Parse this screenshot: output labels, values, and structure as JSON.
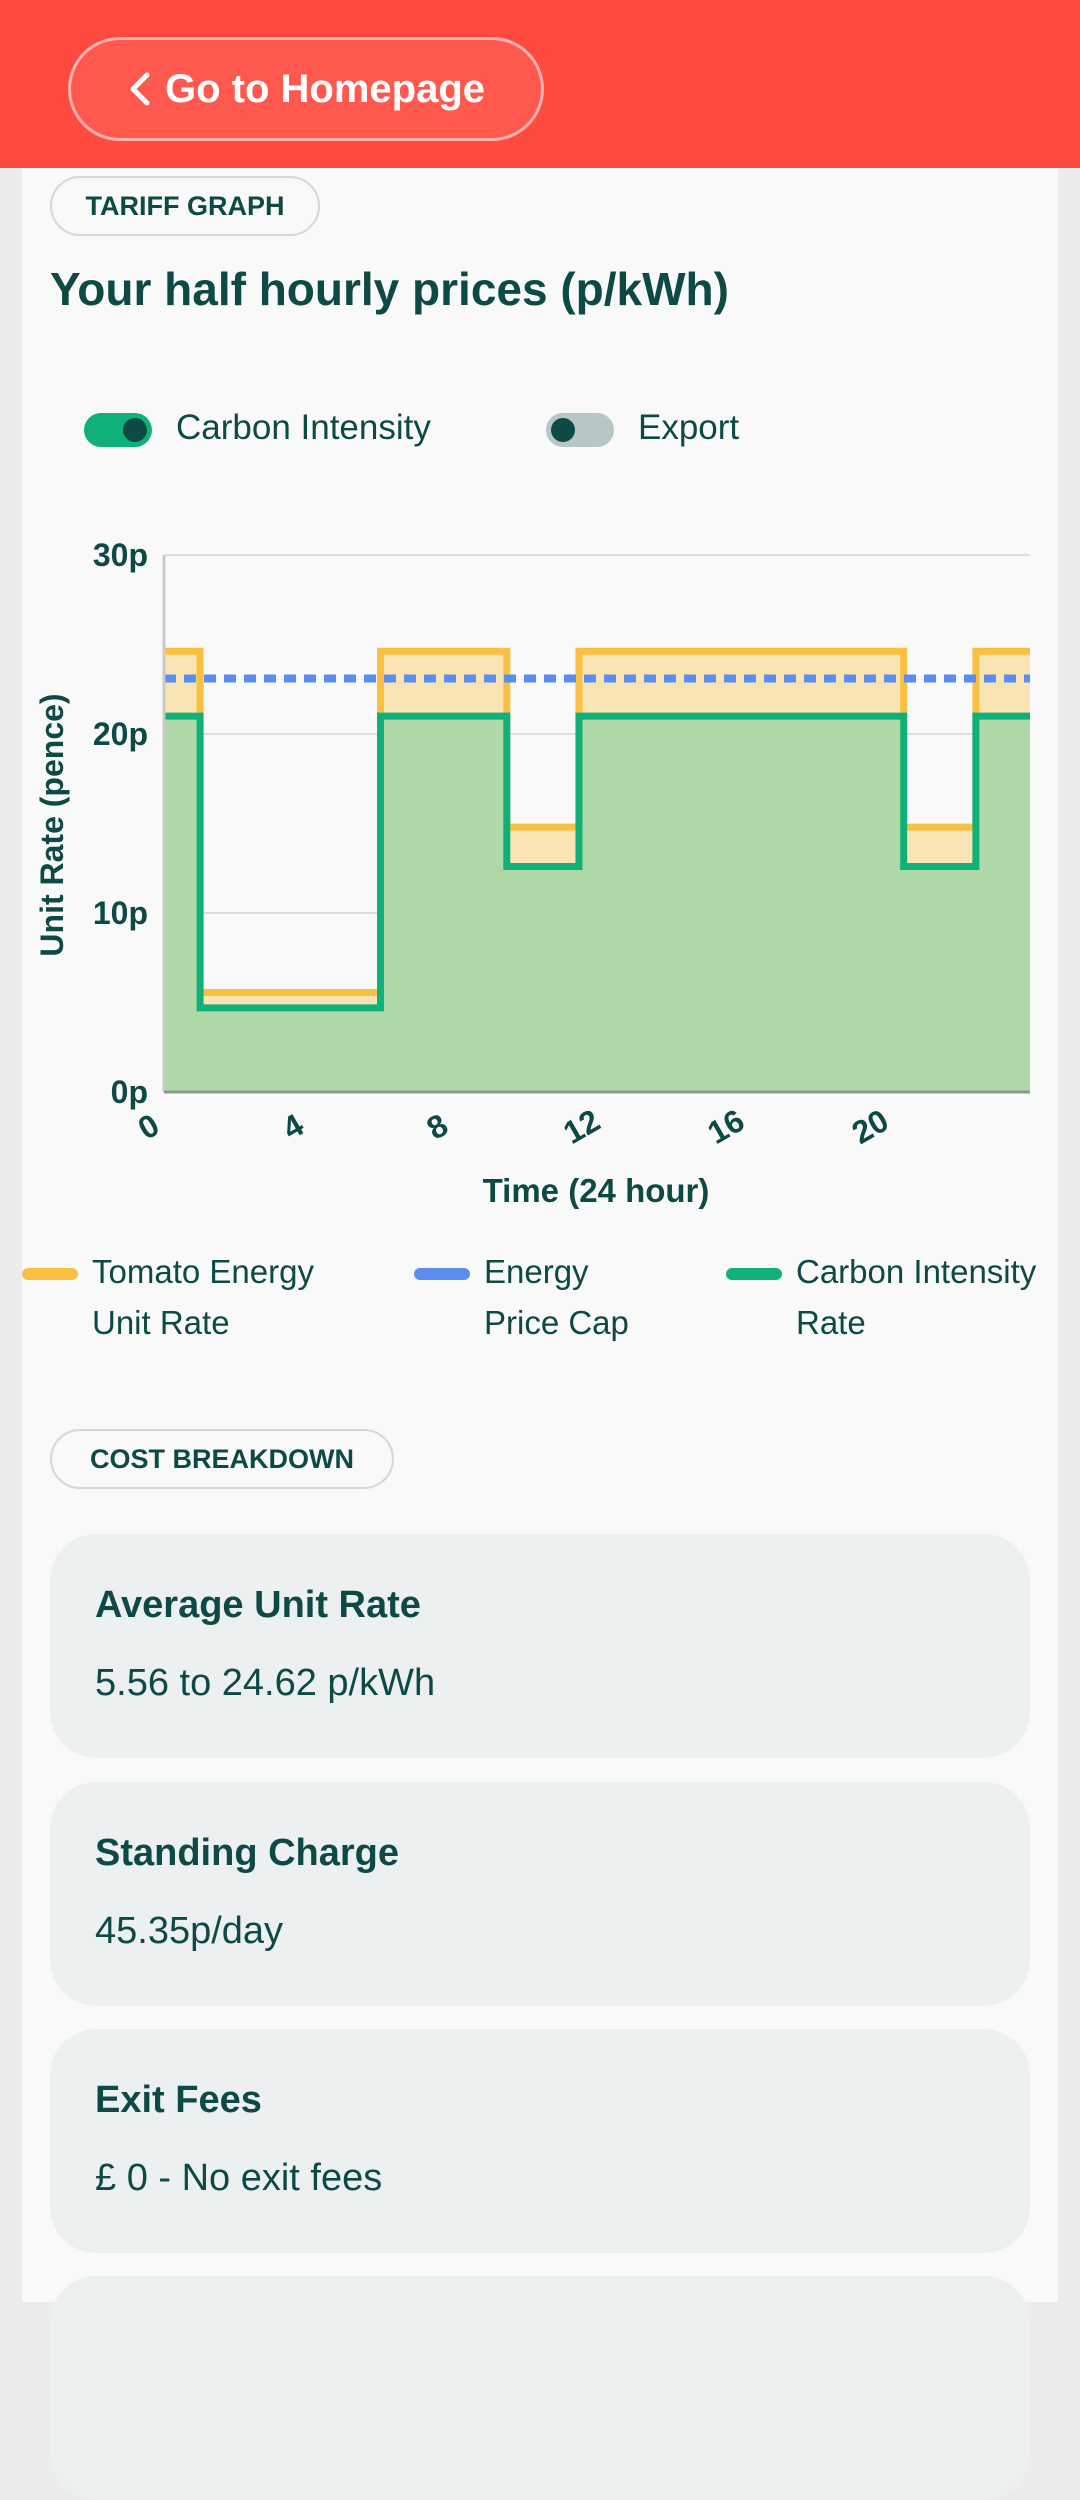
{
  "header": {
    "back_label": "Go to Homepage"
  },
  "tariff": {
    "section_label": "TARIFF GRAPH",
    "title": "Your half hourly prices (p/kWh)",
    "toggles": [
      {
        "label": "Carbon Intensity",
        "on": true
      },
      {
        "label": "Export",
        "on": false
      }
    ],
    "legend": [
      {
        "label": "Tomato Energy Unit Rate",
        "color": "#f9c041"
      },
      {
        "label": "Energy Price Cap",
        "color": "#5b8def"
      },
      {
        "label": "Carbon Intensity Rate",
        "color": "#10b07a"
      }
    ]
  },
  "chart_data": {
    "type": "area",
    "xlabel": "Time (24 hour)",
    "ylabel": "Unit Rate (pence)",
    "xlim": [
      0,
      24
    ],
    "ylim": [
      0,
      30
    ],
    "x_ticks": [
      "0",
      "4",
      "8",
      "12",
      "16",
      "20"
    ],
    "y_ticks": [
      "0p",
      "10p",
      "20p",
      "30p"
    ],
    "grid": true,
    "legend_position": "bottom",
    "series": [
      {
        "name": "Tomato Energy Unit Rate",
        "style": "step-area",
        "color": "#f9c041",
        "steps": [
          {
            "from": 0,
            "to": 1,
            "value": 24.62
          },
          {
            "from": 1,
            "to": 6,
            "value": 5.56
          },
          {
            "from": 6,
            "to": 9.5,
            "value": 24.62
          },
          {
            "from": 9.5,
            "to": 11.5,
            "value": 14.8
          },
          {
            "from": 11.5,
            "to": 20.5,
            "value": 24.62
          },
          {
            "from": 20.5,
            "to": 22.5,
            "value": 14.8
          },
          {
            "from": 22.5,
            "to": 24,
            "value": 24.62
          }
        ]
      },
      {
        "name": "Energy Price Cap",
        "style": "dashed-line",
        "color": "#5b8def",
        "value": 23.1
      },
      {
        "name": "Carbon Intensity Rate",
        "style": "step-area",
        "color": "#10b07a",
        "steps": [
          {
            "from": 0,
            "to": 1,
            "value": 21
          },
          {
            "from": 1,
            "to": 6,
            "value": 4.7
          },
          {
            "from": 6,
            "to": 9.5,
            "value": 21
          },
          {
            "from": 9.5,
            "to": 11.5,
            "value": 12.6
          },
          {
            "from": 11.5,
            "to": 20.5,
            "value": 21
          },
          {
            "from": 20.5,
            "to": 22.5,
            "value": 12.6
          },
          {
            "from": 22.5,
            "to": 24,
            "value": 21
          }
        ]
      }
    ]
  },
  "costs": {
    "section_label": "COST BREAKDOWN",
    "cards": [
      {
        "title": "Average Unit Rate",
        "value": "5.56 to 24.62 p/kWh"
      },
      {
        "title": "Standing Charge",
        "value": "45.35p/day"
      },
      {
        "title": "Exit Fees",
        "value": "£ 0 - No exit fees"
      }
    ]
  }
}
